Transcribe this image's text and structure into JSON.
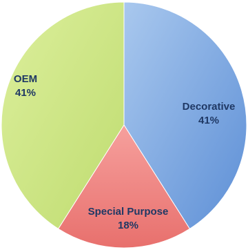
{
  "chart_data": {
    "type": "pie",
    "title": "",
    "start_angle_deg": 0,
    "direction": "clockwise",
    "slices": [
      {
        "label": "Decorative",
        "value": 41,
        "value_text": "41%",
        "color": "#8db4e2"
      },
      {
        "label": "Special Purpose",
        "value": 18,
        "value_text": "18%",
        "color": "#f08784"
      },
      {
        "label": "OEM",
        "value": 41,
        "value_text": "41%",
        "color": "#cfe58c"
      }
    ]
  }
}
